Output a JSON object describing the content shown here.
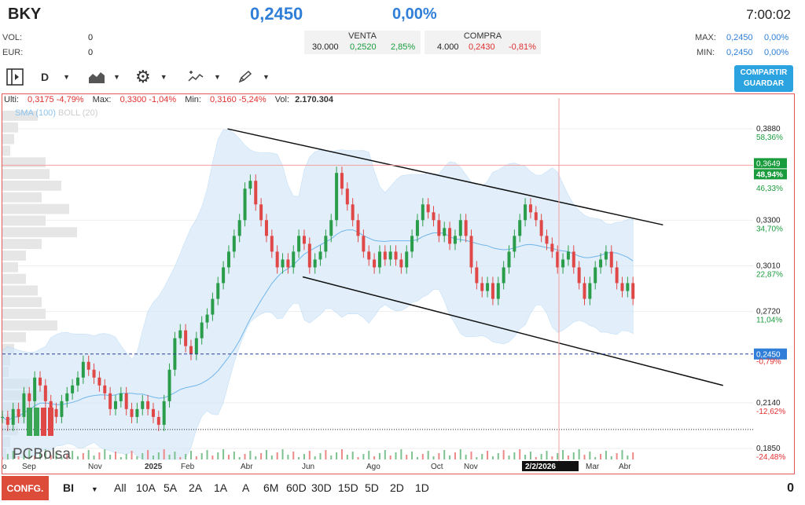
{
  "header": {
    "ticker": "BKY",
    "price": "0,2450",
    "change": "0,00%",
    "time": "7:00:02",
    "vol_label": "VOL:",
    "vol_value": "0",
    "eur_label": "EUR:",
    "eur_value": "0",
    "max_label": "MAX:",
    "max_value": "0,2450",
    "max_pct": "0,00%",
    "min_label": "MIN:",
    "min_value": "0,2450",
    "min_pct": "0,00%"
  },
  "order_book": {
    "sell_label": "VENTA",
    "sell_qty": "30.000",
    "sell_price": "0,2520",
    "sell_pct": "2,85%",
    "buy_label": "COMPRA",
    "buy_qty": "4.000",
    "buy_price": "0,2430",
    "buy_pct": "-0,81%"
  },
  "toolbar": {
    "period": "D",
    "share_label_1": "COMPARTIR",
    "share_label_2": "GUARDAR",
    "icons": [
      "panel-toggle-icon",
      "area-chart-icon",
      "gear-icon",
      "indicators-icon",
      "pencil-icon"
    ]
  },
  "info_bar": {
    "last_label": "Ulti:",
    "last_value": "0,3175",
    "last_pct": "-4,79%",
    "max_label": "Max:",
    "max_value": "0,3300",
    "max_pct": "-1,04%",
    "min_label": "Min:",
    "min_value": "0,3160",
    "min_pct": "-5,24%",
    "vol_label": "Vol:",
    "vol_value": "2.170.304"
  },
  "indicators": {
    "sma": "SMA (100)",
    "boll": "BOLL (20)"
  },
  "watermark": "PCBolsa",
  "chart_data": {
    "type": "line",
    "title": "",
    "ylim": [
      0.178,
      0.4
    ],
    "y_ticks": [
      {
        "value": 0.388,
        "label": "0,3880",
        "pct": "58,36%"
      },
      {
        "value": 0.33,
        "label": "0,3300",
        "pct": "34,70%"
      },
      {
        "value": 0.301,
        "label": "0,3010",
        "pct": "22,87%"
      },
      {
        "value": 0.272,
        "label": "0,2720",
        "pct": "11,04%"
      },
      {
        "value": 0.214,
        "label": "0,2140",
        "pct": "-12,62%"
      },
      {
        "value": 0.185,
        "label": "0,1850",
        "pct": "-24,48%"
      }
    ],
    "partial_tick": {
      "value": 0.35,
      "pct": "46,33%"
    },
    "x_ticks": [
      "o",
      "Sep",
      "Nov",
      "2025",
      "Feb",
      "Abr",
      "Jun",
      "Ago",
      "Oct",
      "Nov",
      "2/2/2026",
      "Mar",
      "Abr"
    ],
    "crosshair_label": "2/2/2026",
    "current_price": {
      "value": 0.245,
      "label": "0,2450",
      "pct": "-0,79%"
    },
    "crosshair_price": {
      "value": 0.3649,
      "label": "0,3649",
      "pct": "48,94%"
    },
    "price_series": [
      0.205,
      0.2,
      0.21,
      0.205,
      0.22,
      0.215,
      0.23,
      0.225,
      0.215,
      0.21,
      0.205,
      0.215,
      0.22,
      0.225,
      0.23,
      0.24,
      0.235,
      0.23,
      0.225,
      0.22,
      0.21,
      0.215,
      0.22,
      0.21,
      0.205,
      0.21,
      0.215,
      0.21,
      0.205,
      0.2,
      0.215,
      0.235,
      0.255,
      0.26,
      0.25,
      0.245,
      0.255,
      0.265,
      0.27,
      0.28,
      0.29,
      0.3,
      0.31,
      0.32,
      0.33,
      0.35,
      0.355,
      0.34,
      0.33,
      0.32,
      0.31,
      0.3,
      0.305,
      0.3,
      0.31,
      0.32,
      0.315,
      0.3,
      0.305,
      0.31,
      0.32,
      0.33,
      0.36,
      0.35,
      0.34,
      0.33,
      0.32,
      0.31,
      0.305,
      0.3,
      0.31,
      0.305,
      0.31,
      0.305,
      0.3,
      0.31,
      0.32,
      0.33,
      0.34,
      0.335,
      0.33,
      0.32,
      0.325,
      0.315,
      0.32,
      0.33,
      0.32,
      0.3,
      0.29,
      0.285,
      0.29,
      0.28,
      0.29,
      0.3,
      0.31,
      0.32,
      0.33,
      0.34,
      0.335,
      0.33,
      0.32,
      0.315,
      0.31,
      0.3,
      0.305,
      0.31,
      0.3,
      0.29,
      0.28,
      0.29,
      0.3,
      0.305,
      0.31,
      0.3,
      0.29,
      0.285,
      0.29,
      0.28
    ],
    "volume_profile": [
      0.45,
      0.2,
      0.15,
      0.1,
      0.55,
      0.6,
      0.75,
      0.5,
      0.85,
      0.55,
      0.95,
      0.5,
      0.3,
      0.2,
      0.3,
      0.45,
      0.5,
      0.55,
      0.7,
      0.3,
      0.15,
      0.1,
      0.08,
      0.35,
      0.6,
      0.45,
      0.3,
      0.2,
      0.1,
      0.05
    ],
    "trend_upper": [
      [
        0.3,
        0.388
      ],
      [
        0.88,
        0.327
      ]
    ],
    "trend_lower": [
      [
        0.4,
        0.294
      ],
      [
        0.96,
        0.225
      ]
    ],
    "support": {
      "value": 0.197
    }
  },
  "bottom_bar": {
    "config_label": "CONFG.",
    "mode": "BI",
    "ranges": [
      "All",
      "10A",
      "5A",
      "2A",
      "1A",
      "A",
      "6M",
      "60D",
      "30D",
      "15D",
      "5D",
      "2D",
      "1D"
    ],
    "right_value": "0"
  }
}
